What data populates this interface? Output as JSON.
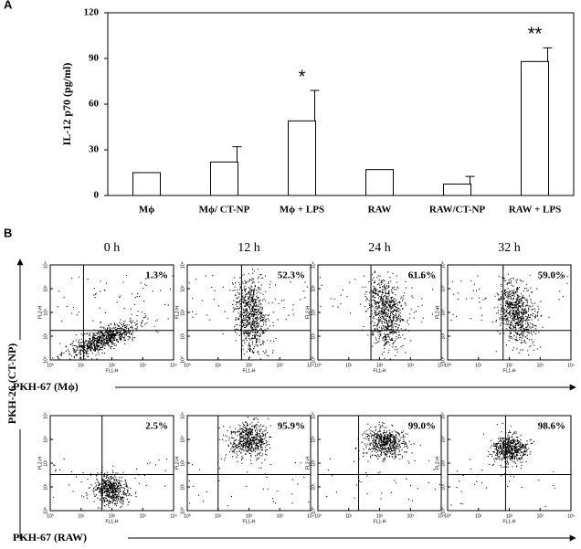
{
  "chart_data": [
    {
      "type": "bar",
      "panel": "A",
      "ylabel": "IL-12 p70 (pg/ml)",
      "categories": [
        "Mϕ",
        "Mϕ/ CT-NP",
        "Mϕ + LPS",
        "RAW",
        "RAW/CT-NP",
        "RAW + LPS"
      ],
      "values": [
        15,
        22,
        49,
        17,
        7.5,
        88
      ],
      "errors": [
        null,
        10,
        20,
        null,
        5,
        9
      ],
      "annotations": [
        {
          "category": "Mϕ + LPS",
          "text": "*"
        },
        {
          "category": "RAW + LPS",
          "text": "**"
        }
      ],
      "color": "#ffffff",
      "ylim": [
        0,
        120
      ],
      "yticks": [
        0,
        30,
        60,
        90,
        120
      ]
    },
    {
      "type": "flow",
      "panel": "B",
      "ylabel": "PKH-26 (CT-NP)",
      "columns": [
        "0 h",
        "12 h",
        "24 h",
        "32 h"
      ],
      "rows": [
        {
          "xlabel": "PKH-67 (Mϕ)",
          "values": [
            1.3,
            52.3,
            61.6,
            59.0
          ],
          "value_labels": [
            "1.3%",
            "52.3%",
            "61.6%",
            "59.0%"
          ]
        },
        {
          "xlabel": "PKH-67 (RAW)",
          "values": [
            2.5,
            95.9,
            99.0,
            98.6
          ],
          "value_labels": [
            "2.5%",
            "95.9%",
            "99.0%",
            "98.6%"
          ]
        }
      ],
      "plot_xlabel": "FL1-H",
      "plot_ylabel": "FL2-H",
      "log_scale": true,
      "xlim": [
        1,
        10000
      ],
      "xticks": [
        {
          "value": 1,
          "label": "10⁰"
        },
        {
          "value": 10,
          "label": "10¹"
        },
        {
          "value": 100,
          "label": "10²"
        },
        {
          "value": 1000,
          "label": "10³"
        },
        {
          "value": 10000,
          "label": "10⁴"
        }
      ],
      "ylim": [
        1,
        10000
      ],
      "yticks": [
        {
          "value": 1,
          "label": "10⁰"
        },
        {
          "value": 10,
          "label": "10¹"
        },
        {
          "value": 100,
          "label": "10²"
        },
        {
          "value": 1000,
          "label": "10³"
        },
        {
          "value": 10000,
          "label": "10⁴"
        }
      ]
    }
  ]
}
